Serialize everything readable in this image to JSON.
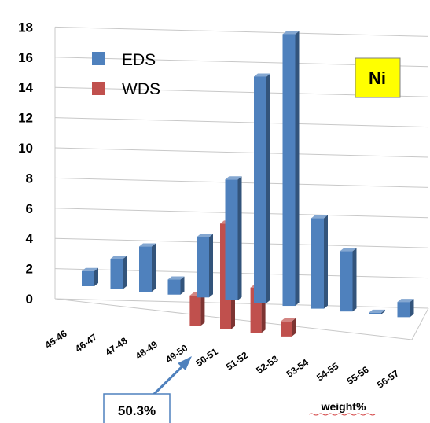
{
  "chart_data": {
    "type": "bar",
    "title": "",
    "xlabel": "weight%",
    "ylabel": "",
    "ylim": [
      0,
      18
    ],
    "yticks": [
      0,
      2,
      4,
      6,
      8,
      10,
      12,
      14,
      16,
      18
    ],
    "grid": true,
    "legend": "top-left",
    "categories": [
      "45-46",
      "46-47",
      "47-48",
      "48-49",
      "49-50",
      "50-51",
      "51-52",
      "52-53",
      "53-54",
      "54-55",
      "55-56",
      "56-57"
    ],
    "series": [
      {
        "name": "EDS",
        "color": "#4F81BD",
        "values": [
          1,
          2,
          3,
          1,
          4,
          8,
          15,
          18,
          6,
          4,
          0.1,
          1
        ]
      },
      {
        "name": "WDS",
        "color": "#C0504D",
        "values": [
          0,
          0,
          0,
          0,
          2,
          7,
          3,
          1,
          0,
          0,
          0,
          0
        ]
      }
    ],
    "badge": "Ni",
    "annotation": {
      "text": "50.3%"
    }
  }
}
